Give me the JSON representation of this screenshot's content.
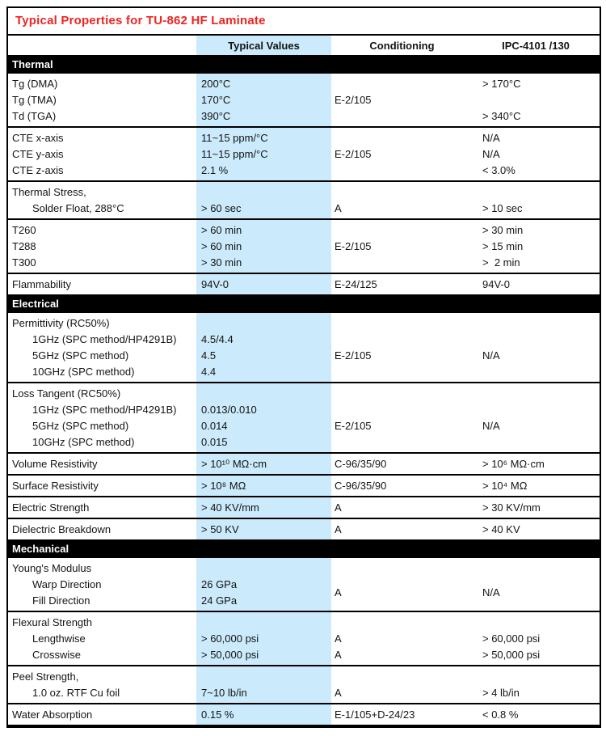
{
  "title": "Typical Properties for TU-862 HF Laminate",
  "colors": {
    "title_red": "#ee2420",
    "accent_blue": "#cbeafb",
    "bar_black": "#000000"
  },
  "columns": {
    "property": "",
    "typical": "Typical Values",
    "conditioning": "Conditioning",
    "ipc": "IPC-4101 /130"
  },
  "sections": [
    {
      "name": "Thermal",
      "groups": [
        {
          "lines": [
            {
              "label": "Tg (DMA)",
              "typical": "200°C",
              "cond": "",
              "ipc": "> 170°C"
            },
            {
              "label": "Tg (TMA)",
              "typical": "170°C",
              "cond": "E-2/105",
              "ipc": ""
            },
            {
              "label": "Td (TGA)",
              "typical": "390°C",
              "cond": "",
              "ipc": "> 340°C"
            }
          ]
        },
        {
          "lines": [
            {
              "label": "CTE x-axis",
              "typical": "11~15 ppm/°C",
              "cond": "",
              "ipc": "N/A"
            },
            {
              "label": "CTE y-axis",
              "typical": "11~15 ppm/°C",
              "cond": "E-2/105",
              "ipc": "N/A"
            },
            {
              "label": "CTE z-axis",
              "typical": "2.1 %",
              "cond": "",
              "ipc": "< 3.0%"
            }
          ]
        },
        {
          "lines": [
            {
              "label": "Thermal Stress,",
              "typical": "",
              "cond": "",
              "ipc": ""
            },
            {
              "label": "Solder Float, 288°C",
              "indent": true,
              "typical": "> 60 sec",
              "cond": "A",
              "ipc": "> 10 sec"
            }
          ]
        },
        {
          "lines": [
            {
              "label": "T260",
              "typical": "> 60 min",
              "cond": "",
              "ipc": "> 30 min"
            },
            {
              "label": "T288",
              "typical": "> 60 min",
              "cond": "E-2/105",
              "ipc": "> 15 min"
            },
            {
              "label": "T300",
              "typical": "> 30 min",
              "cond": "",
              "ipc": ">  2 min"
            }
          ]
        },
        {
          "lines": [
            {
              "label": "Flammability",
              "typical": "94V-0",
              "cond": "E-24/125",
              "ipc": "94V-0"
            }
          ]
        }
      ]
    },
    {
      "name": "Electrical",
      "groups": [
        {
          "lines": [
            {
              "label": "Permittivity (RC50%)",
              "typical": "",
              "cond": "",
              "ipc": ""
            },
            {
              "label": "1GHz (SPC method/HP4291B)",
              "indent": true,
              "typical": "4.5/4.4",
              "cond": "",
              "ipc": ""
            },
            {
              "label": "5GHz (SPC method)",
              "indent": true,
              "typical": "4.5",
              "cond": "E-2/105",
              "ipc": "N/A"
            },
            {
              "label": "10GHz (SPC method)",
              "indent": true,
              "typical": "4.4",
              "cond": "",
              "ipc": ""
            }
          ]
        },
        {
          "lines": [
            {
              "label": "Loss Tangent (RC50%)",
              "typical": "",
              "cond": "",
              "ipc": ""
            },
            {
              "label": "1GHz (SPC method/HP4291B)",
              "indent": true,
              "typical": "0.013/0.010",
              "cond": "",
              "ipc": ""
            },
            {
              "label": "5GHz (SPC method)",
              "indent": true,
              "typical": "0.014",
              "cond": "E-2/105",
              "ipc": "N/A"
            },
            {
              "label": "10GHz (SPC method)",
              "indent": true,
              "typical": "0.015",
              "cond": "",
              "ipc": ""
            }
          ]
        },
        {
          "lines": [
            {
              "label": "Volume Resistivity",
              "typical": "> 10¹⁰ MΩ·cm",
              "cond": "C-96/35/90",
              "ipc": "> 10⁶ MΩ·cm"
            }
          ]
        },
        {
          "lines": [
            {
              "label": "Surface Resistivity",
              "typical": "> 10⁸ MΩ",
              "cond": "C-96/35/90",
              "ipc": "> 10⁴ MΩ"
            }
          ]
        },
        {
          "lines": [
            {
              "label": "Electric Strength",
              "typical": "> 40 KV/mm",
              "cond": "A",
              "ipc": "> 30 KV/mm"
            }
          ]
        },
        {
          "lines": [
            {
              "label": "Dielectric Breakdown",
              "typical": "> 50 KV",
              "cond": "A",
              "ipc": "> 40 KV"
            }
          ]
        }
      ]
    },
    {
      "name": "Mechanical",
      "groups": [
        {
          "lines": [
            {
              "label": "Young's Modulus",
              "typical": "",
              "cond": "",
              "ipc": ""
            },
            {
              "label": "Warp Direction",
              "indent": true,
              "typical": "26 GPa",
              "cond": "A",
              "condSpan": 2,
              "ipc": "N/A",
              "ipcSpan": 2
            },
            {
              "label": "Fill Direction",
              "indent": true,
              "typical": "24 GPa"
            }
          ]
        },
        {
          "lines": [
            {
              "label": "Flexural Strength",
              "typical": "",
              "cond": "",
              "ipc": ""
            },
            {
              "label": "Lengthwise",
              "indent": true,
              "typical": "> 60,000 psi",
              "cond": "A",
              "ipc": "> 60,000 psi"
            },
            {
              "label": "Crosswise",
              "indent": true,
              "typical": "> 50,000 psi",
              "cond": "A",
              "ipc": "> 50,000 psi"
            }
          ]
        },
        {
          "lines": [
            {
              "label": "Peel Strength,",
              "typical": "",
              "cond": "",
              "ipc": ""
            },
            {
              "label": "1.0 oz. RTF Cu foil",
              "indent": true,
              "typical": "7~10 lb/in",
              "cond": "A",
              "ipc": "> 4 lb/in"
            }
          ]
        },
        {
          "lines": [
            {
              "label": "Water Absorption",
              "typical": "0.15 %",
              "cond": "E-1/105+D-24/23",
              "ipc": "< 0.8 %"
            }
          ]
        }
      ]
    }
  ]
}
